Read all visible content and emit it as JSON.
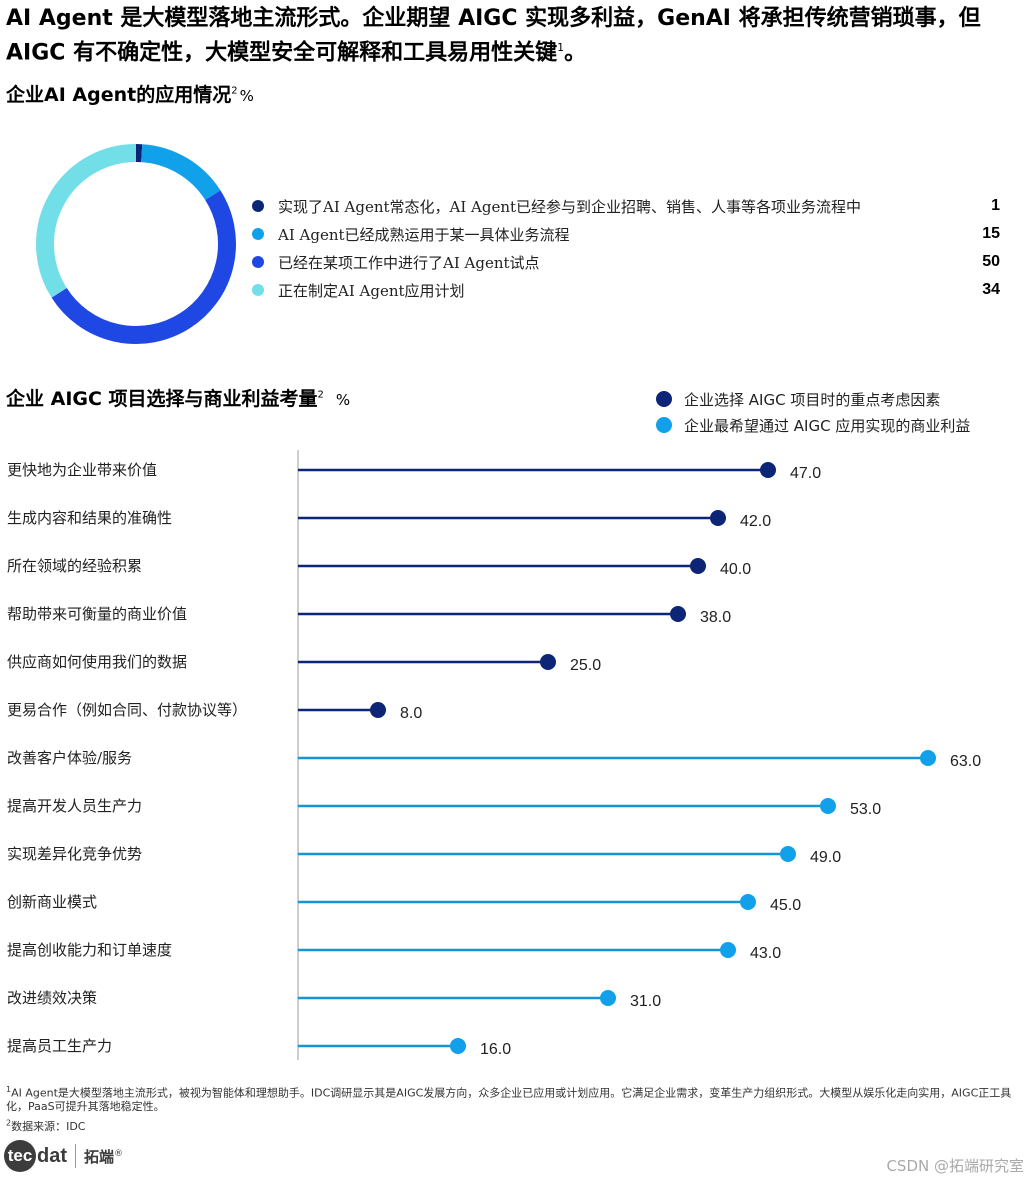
{
  "headline": {
    "text": "AI Agent 是大模型落地主流形式。企业期望 AIGC 实现多利益，GenAI 将承担传统营销琐事，但 AIGC 有不确定性，大模型安全可解释和工具易用性关键",
    "footnote_mark": "1",
    "end": "。"
  },
  "section1": {
    "title": "企业AI Agent的应用情况",
    "footnote_mark": "2",
    "unit": "%"
  },
  "section2": {
    "title": "企业 AIGC 项目选择与商业利益考量",
    "footnote_mark": "2",
    "unit": "%"
  },
  "colors": {
    "navy": "#0d2577",
    "sky": "#11a0ea",
    "royal": "#1f47e3",
    "aqua": "#72dfe8",
    "line_navy": "#0d2577",
    "line_sky": "#1296d8",
    "axis": "#bdbdbd"
  },
  "chart_data": [
    {
      "type": "pie",
      "variant": "donut",
      "title": "企业AI Agent的应用情况",
      "unit": "%",
      "categories": [
        "实现了AI Agent常态化，AI Agent已经参与到企业招聘、销售、人事等各项业务流程中",
        "AI Agent已经成熟运用于某一具体业务流程",
        "已经在某项工作中进行了AI Agent试点",
        "正在制定AI Agent应用计划"
      ],
      "values": [
        1,
        15,
        50,
        34
      ],
      "colors": [
        "#0d2577",
        "#11a0ea",
        "#1f47e3",
        "#72dfe8"
      ],
      "legend": "right"
    },
    {
      "type": "bar",
      "variant": "lollipop-horizontal",
      "title": "企业 AIGC 项目选择与商业利益考量",
      "unit": "%",
      "legend": "top-right",
      "series": [
        {
          "name": "企业选择 AIGC 项目时的重点考虑因素",
          "color": "#0d2577",
          "categories": [
            "更快地为企业带来价值",
            "生成内容和结果的准确性",
            "所在领域的经验积累",
            "帮助带来可衡量的商业价值",
            "供应商如何使用我们的数据",
            "更易合作（例如合同、付款协议等）"
          ],
          "values": [
            47.0,
            42.0,
            40.0,
            38.0,
            25.0,
            8.0
          ],
          "labels": [
            "47.0",
            "42.0",
            "40.0",
            "38.0",
            "25.0",
            "8.0"
          ]
        },
        {
          "name": "企业最希望通过 AIGC 应用实现的商业利益",
          "color": "#11a0ea",
          "categories": [
            "改善客户体验/服务",
            "提高开发人员生产力",
            "实现差异化竞争优势",
            "创新商业模式",
            "提高创收能力和订单速度",
            "改进绩效决策",
            "提高员工生产力"
          ],
          "values": [
            63.0,
            53.0,
            49.0,
            45.0,
            43.0,
            31.0,
            16.0
          ],
          "labels": [
            "63.0",
            "53.0",
            "49.0",
            "45.0",
            "43.0",
            "31.0",
            "16.0"
          ]
        }
      ]
    }
  ],
  "footnotes": {
    "note1_mark": "1",
    "note1": "AI Agent是大模型落地主流形式，被视为智能体和理想助手。IDC调研显示其是AIGC发展方向，众多企业已应用或计划应用。它满足企业需求，变革生产力组织形式。大模型从娱乐化走向实用，AIGC正工具化，PaaS可提升其落地稳定性。",
    "note2_mark": "2",
    "note2": "数据来源：IDC"
  },
  "logo": {
    "circle": "tec",
    "rest": "dat",
    "cn": "拓端",
    "reg": "®",
    "icon": "tecdat-logo"
  },
  "watermark": "CSDN @拓端研究室"
}
